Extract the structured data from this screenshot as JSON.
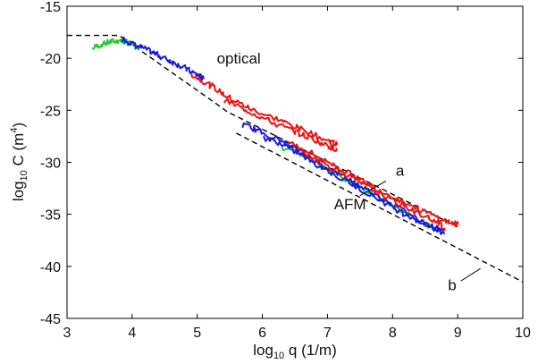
{
  "chart_data": {
    "type": "line",
    "xlabel_main": "log",
    "xlabel_sub": "10",
    "xlabel_rest": " q (1/m)",
    "ylabel_main": "log",
    "ylabel_sub": "10",
    "ylabel_rest": " C (m",
    "ylabel_sup": "4",
    "ylabel_close": ")",
    "xlim": [
      3,
      10
    ],
    "ylim": [
      -45,
      -15
    ],
    "xticks": [
      3,
      4,
      5,
      6,
      7,
      8,
      9,
      10
    ],
    "yticks": [
      -15,
      -20,
      -25,
      -30,
      -35,
      -40,
      -45
    ],
    "annotations": [
      {
        "text": "optical",
        "x": 5.3,
        "y": -20.5
      },
      {
        "text": "AFM",
        "x": 7.1,
        "y": -34.5
      },
      {
        "text": "a",
        "x": 8.05,
        "y": -31.3
      },
      {
        "text": "b",
        "x": 8.85,
        "y": -42.3
      }
    ],
    "leaders": [
      {
        "name": "a",
        "from": [
          7.5,
          -33.2
        ],
        "to": [
          7.9,
          -31.8
        ]
      },
      {
        "name": "b",
        "from": [
          9.05,
          -41.4
        ],
        "to": [
          9.35,
          -40.2
        ]
      }
    ],
    "series": [
      {
        "name": "fit a",
        "color": "#000000",
        "dashed": true,
        "x": [
          3.0,
          3.8,
          5.3,
          5.45,
          9.0
        ],
        "y": [
          -17.8,
          -17.8,
          -24.4,
          -25.1,
          -36.2
        ]
      },
      {
        "name": "fit b",
        "color": "#000000",
        "dashed": true,
        "x": [
          5.6,
          10.0
        ],
        "y": [
          -27.2,
          -41.5
        ]
      },
      {
        "name": "green optical",
        "color": "#22cc22",
        "x": [
          3.4,
          3.6,
          3.8,
          3.95,
          4.1
        ],
        "y": [
          -19.0,
          -18.5,
          -18.3,
          -18.5,
          -19.1
        ]
      },
      {
        "name": "blue optical",
        "color": "#1a1adf",
        "x": [
          3.85,
          4.0,
          4.2,
          4.4,
          4.6,
          4.8,
          5.0,
          5.1
        ],
        "y": [
          -18.1,
          -18.6,
          -19.1,
          -19.7,
          -20.3,
          -20.9,
          -21.6,
          -22.0
        ]
      },
      {
        "name": "red optical",
        "color": "#ee1111",
        "x": [
          4.9,
          5.2,
          5.5,
          5.8,
          6.2,
          6.6,
          7.0,
          7.15
        ],
        "y": [
          -21.5,
          -22.6,
          -23.8,
          -24.8,
          -25.8,
          -26.8,
          -27.9,
          -28.3
        ]
      },
      {
        "name": "red optical 2",
        "color": "#ee1111",
        "x": [
          5.4,
          5.8,
          6.2,
          6.6,
          7.0,
          7.15
        ],
        "y": [
          -24.0,
          -25.1,
          -26.3,
          -27.3,
          -28.4,
          -28.8
        ]
      },
      {
        "name": "green AFM",
        "color": "#22cc22",
        "x": [
          6.3,
          6.7,
          7.1,
          7.5,
          7.9,
          8.3,
          8.75
        ],
        "y": [
          -28.6,
          -29.5,
          -31.0,
          -32.3,
          -33.8,
          -35.2,
          -36.8
        ]
      },
      {
        "name": "blue AFM",
        "color": "#1a1adf",
        "x": [
          5.7,
          6.0,
          6.4,
          6.8,
          7.2,
          7.6,
          8.0,
          8.4,
          8.8
        ],
        "y": [
          -26.4,
          -27.1,
          -28.3,
          -29.8,
          -31.2,
          -32.6,
          -34.0,
          -35.5,
          -36.9
        ]
      },
      {
        "name": "blue AFM 2",
        "color": "#1a1adf",
        "x": [
          6.0,
          6.3,
          6.6,
          7.0,
          7.4,
          7.8,
          8.2,
          8.6,
          8.8
        ],
        "y": [
          -27.6,
          -28.2,
          -29.3,
          -30.8,
          -32.2,
          -33.6,
          -35.0,
          -36.2,
          -36.6
        ]
      },
      {
        "name": "red AFM",
        "color": "#ee1111",
        "x": [
          6.4,
          6.8,
          7.2,
          7.6,
          8.0,
          8.4,
          8.8,
          9.0
        ],
        "y": [
          -28.0,
          -29.3,
          -30.6,
          -32.0,
          -33.3,
          -34.5,
          -35.6,
          -36.0
        ]
      },
      {
        "name": "red AFM 2",
        "color": "#ee1111",
        "x": [
          6.6,
          7.0,
          7.4,
          7.8,
          8.2,
          8.6,
          8.8
        ],
        "y": [
          -28.9,
          -30.3,
          -31.6,
          -33.0,
          -34.3,
          -35.5,
          -36.3
        ]
      }
    ]
  }
}
